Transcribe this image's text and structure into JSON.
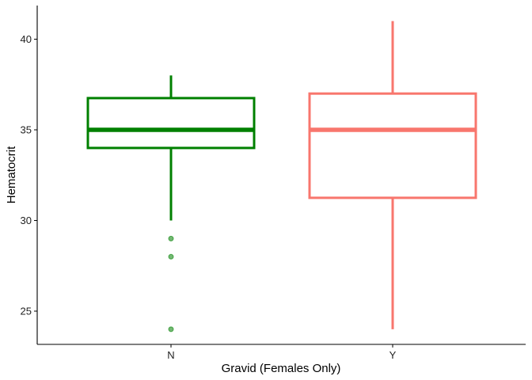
{
  "chart_data": {
    "type": "box",
    "xlabel": "Gravid (Females Only)",
    "ylabel": "Hematocrit",
    "categories": [
      "N",
      "Y"
    ],
    "ylim": [
      23,
      42
    ],
    "yticks": [
      25,
      30,
      35,
      40
    ],
    "boxes": [
      {
        "category": "N",
        "color": "#008000",
        "whisker_low": 30,
        "q1": 34,
        "median": 35,
        "q3": 36.75,
        "whisker_high": 38,
        "outliers": [
          29,
          28,
          24
        ]
      },
      {
        "category": "Y",
        "color": "#F8766D",
        "whisker_low": 24,
        "q1": 31.25,
        "median": 35,
        "q3": 37,
        "whisker_high": 41,
        "outliers": []
      }
    ],
    "grid": false,
    "legend": "none"
  }
}
